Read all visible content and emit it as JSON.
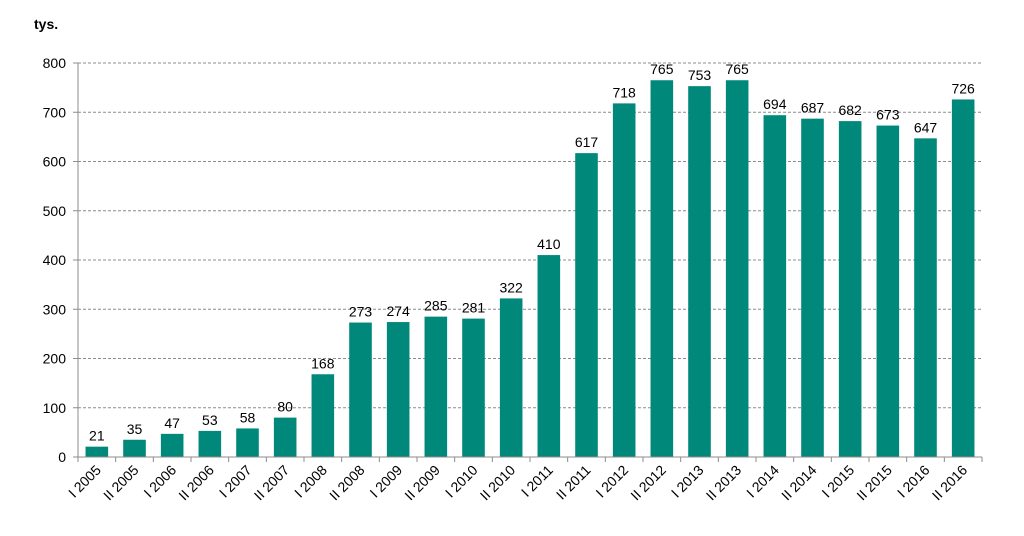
{
  "chart_data": {
    "type": "bar",
    "unit_label": "tys.",
    "categories": [
      "I 2005",
      "II 2005",
      "I 2006",
      "II 2006",
      "I 2007",
      "II 2007",
      "I 2008",
      "II 2008",
      "I 2009",
      "II 2009",
      "I 2010",
      "II 2010",
      "I 2011",
      "II 2011",
      "I 2012",
      "II 2012",
      "I 2013",
      "II 2013",
      "I 2014",
      "II 2014",
      "I 2015",
      "II 2015",
      "I 2016",
      "II 2016"
    ],
    "values": [
      21,
      35,
      47,
      53,
      58,
      80,
      168,
      273,
      274,
      285,
      281,
      322,
      410,
      617,
      718,
      765,
      753,
      765,
      694,
      687,
      682,
      673,
      647,
      726
    ],
    "ylim": [
      0,
      800
    ],
    "yticks": [
      0,
      100,
      200,
      300,
      400,
      500,
      600,
      700,
      800
    ],
    "grid": true,
    "legend": "none",
    "bar_color": "#00897B"
  }
}
